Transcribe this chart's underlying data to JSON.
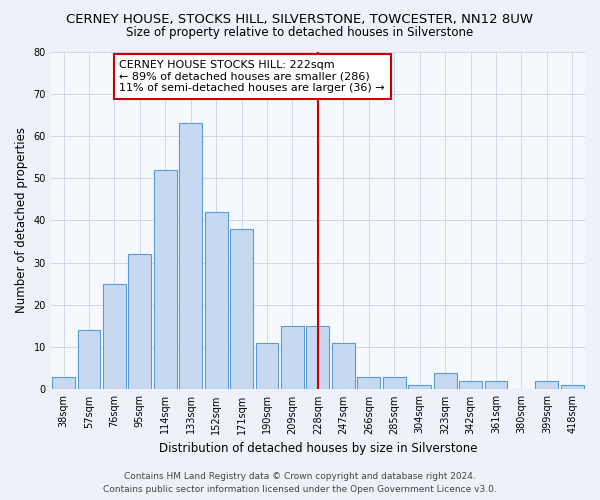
{
  "title": "CERNEY HOUSE, STOCKS HILL, SILVERSTONE, TOWCESTER, NN12 8UW",
  "subtitle": "Size of property relative to detached houses in Silverstone",
  "xlabel": "Distribution of detached houses by size in Silverstone",
  "ylabel": "Number of detached properties",
  "bar_labels": [
    "38sqm",
    "57sqm",
    "76sqm",
    "95sqm",
    "114sqm",
    "133sqm",
    "152sqm",
    "171sqm",
    "190sqm",
    "209sqm",
    "228sqm",
    "247sqm",
    "266sqm",
    "285sqm",
    "304sqm",
    "323sqm",
    "342sqm",
    "361sqm",
    "380sqm",
    "399sqm",
    "418sqm"
  ],
  "bar_values": [
    3,
    14,
    25,
    32,
    52,
    63,
    42,
    38,
    11,
    15,
    15,
    11,
    3,
    3,
    1,
    4,
    2,
    2,
    0,
    2,
    1
  ],
  "bar_color": "#c6d9f1",
  "bar_edge_color": "#5b9bd5",
  "vline_x": 10,
  "vline_color": "#cc0000",
  "annotation_text": "CERNEY HOUSE STOCKS HILL: 222sqm\n← 89% of detached houses are smaller (286)\n11% of semi-detached houses are larger (36) →",
  "annotation_box_color": "#ffffff",
  "annotation_box_edge": "#cc0000",
  "ylim": [
    0,
    80
  ],
  "yticks": [
    0,
    10,
    20,
    30,
    40,
    50,
    60,
    70,
    80
  ],
  "footer_line1": "Contains HM Land Registry data © Crown copyright and database right 2024.",
  "footer_line2": "Contains public sector information licensed under the Open Government Licence v3.0.",
  "bg_color": "#eef2f8",
  "plot_bg_color": "#f5f8fd",
  "title_fontsize": 9.5,
  "subtitle_fontsize": 8.5,
  "axis_label_fontsize": 8.5,
  "tick_fontsize": 7,
  "annotation_fontsize": 8,
  "footer_fontsize": 6.5
}
